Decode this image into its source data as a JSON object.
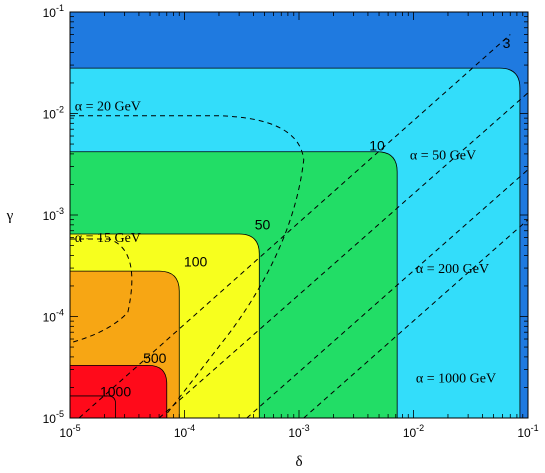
{
  "chart_data": {
    "type": "contour",
    "xlabel": "δ",
    "ylabel": "γ",
    "xscale": "log",
    "yscale": "log",
    "xlim": [
      1e-05,
      0.1
    ],
    "ylim": [
      1e-05,
      0.1
    ],
    "x_ticks": [
      {
        "base": "10",
        "exp": "-5"
      },
      {
        "base": "10",
        "exp": "-4"
      },
      {
        "base": "10",
        "exp": "-3"
      },
      {
        "base": "10",
        "exp": "-2"
      },
      {
        "base": "10",
        "exp": "-1"
      }
    ],
    "y_ticks": [
      {
        "base": "10",
        "exp": "-5"
      },
      {
        "base": "10",
        "exp": "-4"
      },
      {
        "base": "10",
        "exp": "-3"
      },
      {
        "base": "10",
        "exp": "-2"
      },
      {
        "base": "10",
        "exp": "-1"
      }
    ],
    "filled_regions": [
      {
        "level": "3",
        "color": "#1f7ae0",
        "delta_edge": 0.085,
        "gamma_edge": 0.028
      },
      {
        "level": "10",
        "color": "#33ddfa",
        "delta_edge": 0.0072,
        "gamma_edge": 0.0042
      },
      {
        "level": "50",
        "color": "#22dd66",
        "delta_edge": 0.00045,
        "gamma_edge": 0.00065
      },
      {
        "level": "100",
        "color": "#f7ff1e",
        "delta_edge": 9e-05,
        "gamma_edge": 0.00028
      },
      {
        "level": "500",
        "color": "#f7a614",
        "delta_edge": 7e-05,
        "gamma_edge": 3.3e-05
      },
      {
        "level": "1000",
        "color": "#ff0a1a",
        "delta_edge": 2.5e-05,
        "gamma_edge": 1.65e-05
      }
    ],
    "contour_labels": [
      {
        "text": "3",
        "delta": 0.065,
        "gamma": 0.048
      },
      {
        "text": "10",
        "delta": 0.0048,
        "gamma": 0.0047
      },
      {
        "text": "50",
        "delta": 0.00048,
        "gamma": 0.00078
      },
      {
        "text": "100",
        "delta": 0.000125,
        "gamma": 0.00034
      },
      {
        "text": "500",
        "delta": 5.5e-05,
        "gamma": 3.8e-05
      },
      {
        "text": "1000",
        "delta": 2.5e-05,
        "gamma": 1.78e-05
      }
    ],
    "dashed_curves": [
      {
        "label": "α = 20 GeV",
        "label_delta": 1.1e-05,
        "label_gamma": 0.0115
      },
      {
        "label": "α = 15 GeV",
        "label_delta": 1.1e-05,
        "label_gamma": 0.00058
      },
      {
        "label": "α = 50 GeV",
        "label_delta": 0.0093,
        "label_gamma": 0.0038
      },
      {
        "label": "α = 200 GeV",
        "label_delta": 0.0105,
        "label_gamma": 0.00029
      },
      {
        "label": "α = 1000 GeV",
        "label_delta": 0.0105,
        "label_gamma": 2.4e-05
      }
    ]
  }
}
